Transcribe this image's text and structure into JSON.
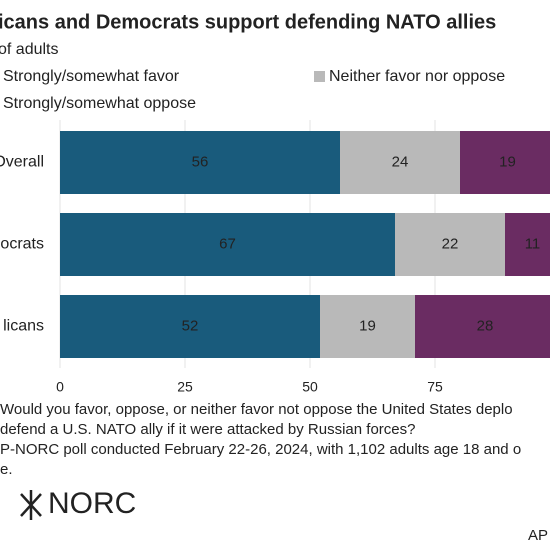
{
  "chart_data": {
    "type": "stacked-bar-horizontal",
    "title": "icans and Democrats support defending NATO allies",
    "subtitle": "of adults",
    "categories": [
      "Overall",
      "ocrats",
      "licans"
    ],
    "series": [
      {
        "name": "Strongly/somewhat favor",
        "color": "#195b7c",
        "values": [
          56,
          67,
          52
        ]
      },
      {
        "name": "Neither favor nor oppose",
        "color": "#b9b9b9",
        "values": [
          24,
          22,
          19
        ]
      },
      {
        "name": "Strongly/somewhat oppose",
        "color": "#6a2c62",
        "values": [
          19,
          11,
          28
        ]
      }
    ],
    "xlim": [
      0,
      100
    ],
    "xticks": [
      0,
      25,
      50,
      75
    ],
    "grid": true
  },
  "notes": [
    "Would you favor, oppose, or neither favor not oppose the United States deplo",
    "defend a U.S. NATO ally if it were attacked by Russian forces?",
    "P-NORC poll conducted February 22-26, 2024, with 1,102 adults age 18 and o",
    "e."
  ],
  "logo": "NORC",
  "credit": "AP"
}
